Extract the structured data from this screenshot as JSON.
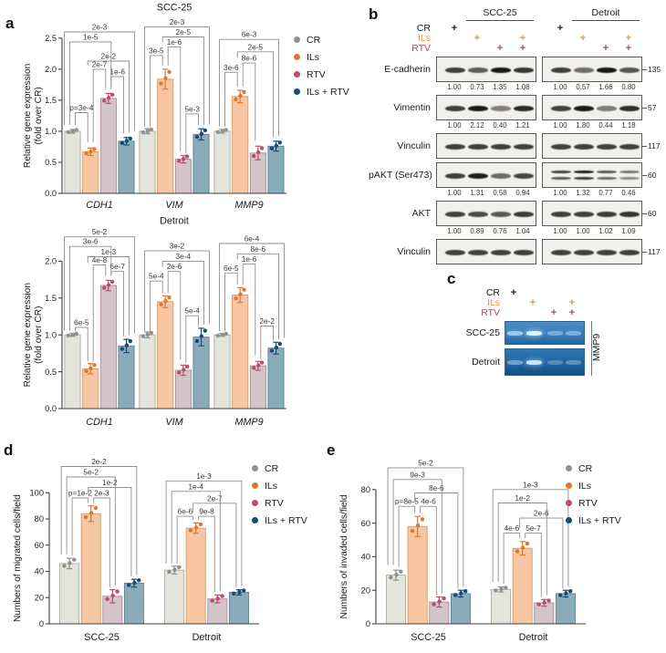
{
  "colors": {
    "bar_fills": [
      "#e3e5dd",
      "#f6c7a2",
      "#d3c4ca",
      "#8aabb8"
    ],
    "bar_edges": [
      "#a9ada1",
      "#d89a66",
      "#a78d97",
      "#5e8495"
    ],
    "dot_colors": [
      "#8d928e",
      "#e0772e",
      "#b8506a",
      "#1a4a72"
    ],
    "bracket_line": "#8f8f8f",
    "bracket_text": "#3a3a3a",
    "axis": "#3f3f3f",
    "tick_text": "#1f1f1f",
    "blot_band": "#191919",
    "gel_band": "#ddf1fb"
  },
  "legend": {
    "items": [
      "CR",
      "ILs",
      "RTV",
      "ILs + RTV"
    ]
  },
  "panels": {
    "a": {
      "label": "a"
    },
    "b": {
      "label": "b",
      "groups": [
        "SCC-25",
        "Detroit"
      ],
      "plus_glyph": "+",
      "treatments": [
        {
          "name": "CR",
          "color": "#1b1b1b",
          "lanes": [
            1,
            0,
            0,
            0
          ]
        },
        {
          "name": "ILs",
          "color": "#ef923d",
          "lanes": [
            0,
            1,
            0,
            1
          ]
        },
        {
          "name": "RTV",
          "color": "#a9486b",
          "lanes": [
            0,
            0,
            1,
            1
          ]
        }
      ],
      "blots": [
        {
          "name": "E-cadherin",
          "marker": "135",
          "scc_nums": [
            "1.00",
            "0.73",
            "1.35",
            "1.08"
          ],
          "det_nums": [
            "1.00",
            "0.57",
            "1.66",
            "0.80"
          ]
        },
        {
          "name": "Vimentin",
          "marker": "57",
          "scc_nums": [
            "1.00",
            "2.12",
            "0.40",
            "1.21"
          ],
          "det_nums": [
            "1.00",
            "1.80",
            "0.44",
            "1.18"
          ]
        },
        {
          "name": "Vinculin",
          "marker": "117"
        },
        {
          "name": "pAKT (Ser473)",
          "marker": "60",
          "det_double": true,
          "scc_nums": [
            "1.00",
            "1.31",
            "0.58",
            "0.94"
          ],
          "det_nums": [
            "1.00",
            "1.32",
            "0.77",
            "0.46"
          ]
        },
        {
          "name": "AKT",
          "marker": "60",
          "scc_nums": [
            "1.00",
            "0.89",
            "0.76",
            "1.04"
          ],
          "det_nums": [
            "1.00",
            "1.00",
            "1.02",
            "1.09"
          ]
        },
        {
          "name": "Vinculin",
          "marker": "117"
        }
      ]
    },
    "c": {
      "label": "c",
      "plus_glyph": "+",
      "treatments": [
        {
          "name": "CR",
          "color": "#1b1b1b",
          "lanes": [
            1,
            0,
            0,
            0
          ]
        },
        {
          "name": "ILs",
          "color": "#ef923d",
          "lanes": [
            0,
            1,
            0,
            1
          ]
        },
        {
          "name": "RTV",
          "color": "#a9486b",
          "lanes": [
            0,
            0,
            1,
            1
          ]
        }
      ],
      "rows": [
        {
          "name": "SCC-25",
          "bands": [
            0.55,
            0.95,
            0.28,
            0.32
          ]
        },
        {
          "name": "Detroit",
          "bands": [
            0.32,
            0.85,
            0.16,
            0.2
          ]
        }
      ],
      "side_label": "MMP9"
    },
    "d": {
      "label": "d"
    },
    "e": {
      "label": "e"
    }
  },
  "chart_data": [
    {
      "panel": "a-top",
      "type": "bar",
      "title": "SCC-25",
      "ylabel": [
        "Relative gene expression",
        "(fold over CR)"
      ],
      "ylim": [
        0,
        2.85
      ],
      "yticks": [
        0,
        0.5,
        1,
        1.5,
        2,
        2.5
      ],
      "ytick_labels": [
        "0.0",
        "0.5",
        "1.0",
        "1.5",
        "2.0",
        "2.5"
      ],
      "categories": [
        "CDH1",
        "VIM",
        "MMP9"
      ],
      "categories_italic": true,
      "series": [
        {
          "name": "CR",
          "values": [
            1.0,
            1.0,
            1.0
          ],
          "errors": [
            0.03,
            0.04,
            0.03
          ]
        },
        {
          "name": "ILs",
          "values": [
            0.67,
            1.84,
            1.56
          ],
          "errors": [
            0.06,
            0.16,
            0.1
          ]
        },
        {
          "name": "RTV",
          "values": [
            1.53,
            0.55,
            0.65
          ],
          "errors": [
            0.08,
            0.06,
            0.11
          ]
        },
        {
          "name": "ILs + RTV",
          "values": [
            0.84,
            0.95,
            0.76
          ],
          "errors": [
            0.06,
            0.09,
            0.08
          ]
        }
      ],
      "brackets": [
        [
          0,
          0,
          1,
          "p=3e-4",
          1.3,
          1.1,
          0.82
        ],
        [
          0,
          1,
          2,
          "2e-7",
          2.0,
          0.82,
          1.68
        ],
        [
          0,
          2,
          3,
          "1e-6",
          1.88,
          1.68,
          0.97
        ],
        [
          0,
          1,
          3,
          "2e-2",
          2.13,
          2.06,
          0.99
        ],
        [
          0,
          0,
          2,
          "1e-5",
          2.44,
          1.1,
          1.7
        ],
        [
          0,
          0,
          3,
          "2e-3",
          2.6,
          1.1,
          1.01
        ],
        [
          1,
          0,
          1,
          "3e-5",
          2.22,
          1.08,
          2.06
        ],
        [
          1,
          1,
          2,
          "1e-6",
          2.36,
          2.06,
          0.68
        ],
        [
          1,
          1,
          3,
          "2e-5",
          2.52,
          2.44,
          1.1
        ],
        [
          1,
          0,
          3,
          "2e-3",
          2.68,
          1.08,
          1.12
        ],
        [
          1,
          2,
          3,
          "5e-3",
          1.28,
          0.65,
          1.1
        ],
        [
          2,
          0,
          1,
          "3e-6",
          1.95,
          1.08,
          1.72
        ],
        [
          2,
          1,
          2,
          "8e-6",
          2.1,
          1.72,
          0.84
        ],
        [
          2,
          1,
          3,
          "2e-5",
          2.28,
          2.18,
          0.9
        ],
        [
          2,
          0,
          3,
          "6e-3",
          2.48,
          1.08,
          0.92
        ]
      ]
    },
    {
      "panel": "a-bottom",
      "type": "bar",
      "title": "Detroit",
      "ylabel": [
        "Relative gene expression",
        "(fold over CR)"
      ],
      "ylim": [
        0,
        2.45
      ],
      "yticks": [
        0,
        0.5,
        1,
        1.5,
        2
      ],
      "ytick_labels": [
        "0.0",
        "0.5",
        "1.0",
        "1.5",
        "2.0"
      ],
      "categories": [
        "CDH1",
        "VIM",
        "MMP9"
      ],
      "categories_italic": true,
      "series": [
        {
          "name": "CR",
          "values": [
            1.0,
            1.0,
            1.0
          ],
          "errors": [
            0.02,
            0.04,
            0.02
          ]
        },
        {
          "name": "ILs",
          "values": [
            0.54,
            1.45,
            1.54
          ],
          "errors": [
            0.07,
            0.08,
            0.1
          ]
        },
        {
          "name": "RTV",
          "values": [
            1.67,
            0.52,
            0.58
          ],
          "errors": [
            0.07,
            0.07,
            0.06
          ]
        },
        {
          "name": "ILs + RTV",
          "values": [
            0.85,
            0.97,
            0.82
          ],
          "errors": [
            0.09,
            0.12,
            0.08
          ]
        }
      ],
      "brackets": [
        [
          0,
          0,
          1,
          "6e-5",
          1.1,
          1.05,
          0.64
        ],
        [
          0,
          1,
          2,
          "4e-8",
          1.95,
          0.64,
          1.8
        ],
        [
          0,
          2,
          3,
          "6e-7",
          1.86,
          1.8,
          0.98
        ],
        [
          0,
          1,
          3,
          "1e-3",
          2.06,
          1.98,
          1.0
        ],
        [
          0,
          0,
          2,
          "3e-6",
          2.2,
          1.06,
          1.82
        ],
        [
          0,
          0,
          3,
          "5e-2",
          2.33,
          1.06,
          1.02
        ],
        [
          1,
          0,
          1,
          "5e-4",
          1.73,
          1.05,
          1.57
        ],
        [
          1,
          1,
          2,
          "2e-6",
          1.86,
          1.57,
          0.66
        ],
        [
          1,
          1,
          3,
          "3e-4",
          2.0,
          1.92,
          1.14
        ],
        [
          1,
          0,
          3,
          "3e-2",
          2.14,
          1.05,
          1.16
        ],
        [
          1,
          2,
          3,
          "5e-4",
          1.26,
          0.62,
          1.12
        ],
        [
          2,
          0,
          1,
          "6e-5",
          1.84,
          1.05,
          1.68
        ],
        [
          2,
          1,
          2,
          "1e-6",
          1.96,
          1.68,
          0.72
        ],
        [
          2,
          1,
          3,
          "8e-6",
          2.1,
          2.02,
          0.94
        ],
        [
          2,
          0,
          3,
          "6e-4",
          2.24,
          1.05,
          0.96
        ],
        [
          2,
          2,
          3,
          "2e-2",
          1.12,
          0.67,
          0.92
        ]
      ]
    },
    {
      "panel": "d",
      "type": "bar",
      "title": "",
      "ylabel": "Numbers of migrated cells/field",
      "ylim": [
        0,
        128
      ],
      "yticks": [
        0,
        20,
        40,
        60,
        80,
        100
      ],
      "ytick_labels": [
        "0",
        "20",
        "40",
        "60",
        "80",
        "100"
      ],
      "categories": [
        "SCC-25",
        "Detroit"
      ],
      "categories_italic": false,
      "series": [
        {
          "name": "CR",
          "values": [
            46,
            41
          ],
          "errors": [
            4,
            3
          ]
        },
        {
          "name": "ILs",
          "values": [
            84,
            73
          ],
          "errors": [
            6,
            4
          ]
        },
        {
          "name": "RTV",
          "values": [
            21,
            19
          ],
          "errors": [
            5,
            3
          ]
        },
        {
          "name": "ILs + RTV",
          "values": [
            31,
            24
          ],
          "errors": [
            3,
            2
          ]
        }
      ],
      "brackets": [
        [
          0,
          0,
          1,
          "p=1e-2",
          96,
          52,
          92
        ],
        [
          0,
          1,
          2,
          "2e-3",
          96,
          92,
          28
        ],
        [
          0,
          1,
          3,
          "1e-2",
          104,
          99,
          36
        ],
        [
          0,
          0,
          2,
          "5e-2",
          112,
          53,
          29
        ],
        [
          0,
          0,
          3,
          "2e-2",
          120,
          53,
          37
        ],
        [
          1,
          0,
          1,
          "6e-6",
          82,
          46,
          79
        ],
        [
          1,
          1,
          2,
          "9e-8",
          82,
          79,
          24
        ],
        [
          1,
          1,
          3,
          "2e-7",
          92,
          85,
          28
        ],
        [
          1,
          0,
          2,
          "1e-4",
          101,
          46,
          25
        ],
        [
          1,
          0,
          3,
          "1e-3",
          109,
          46,
          29
        ]
      ]
    },
    {
      "panel": "e",
      "type": "bar",
      "title": "",
      "ylabel": "Numbers of invaded cells/field",
      "ylim": [
        0,
        100
      ],
      "yticks": [
        0,
        20,
        40,
        60,
        80
      ],
      "ytick_labels": [
        "0",
        "20",
        "40",
        "60",
        "80"
      ],
      "categories": [
        "SCC-25",
        "Detroit"
      ],
      "categories_italic": false,
      "series": [
        {
          "name": "CR",
          "values": [
            29,
            20.5
          ],
          "errors": [
            3,
            1.5
          ]
        },
        {
          "name": "ILs",
          "values": [
            58,
            45
          ],
          "errors": [
            6,
            4
          ]
        },
        {
          "name": "RTV",
          "values": [
            13,
            12.5
          ],
          "errors": [
            3,
            2
          ]
        },
        {
          "name": "ILs + RTV",
          "values": [
            18,
            18
          ],
          "errors": [
            2,
            2
          ]
        }
      ],
      "brackets": [
        [
          0,
          0,
          1,
          "p=8e-5",
          70,
          34,
          66
        ],
        [
          0,
          1,
          2,
          "4e-6",
          70,
          66,
          17
        ],
        [
          0,
          1,
          3,
          "8e-6",
          78,
          73,
          21
        ],
        [
          0,
          0,
          2,
          "9e-3",
          86,
          35,
          18
        ],
        [
          0,
          0,
          3,
          "5e-2",
          93,
          35,
          22
        ],
        [
          1,
          0,
          1,
          "4e-6",
          54,
          24,
          51
        ],
        [
          1,
          1,
          2,
          "5e-7",
          54,
          51,
          16
        ],
        [
          1,
          1,
          3,
          "2e-6",
          63,
          57,
          21
        ],
        [
          1,
          0,
          2,
          "1e-2",
          72,
          25,
          17
        ],
        [
          1,
          0,
          3,
          "1e-3",
          80,
          25,
          22
        ]
      ]
    }
  ]
}
